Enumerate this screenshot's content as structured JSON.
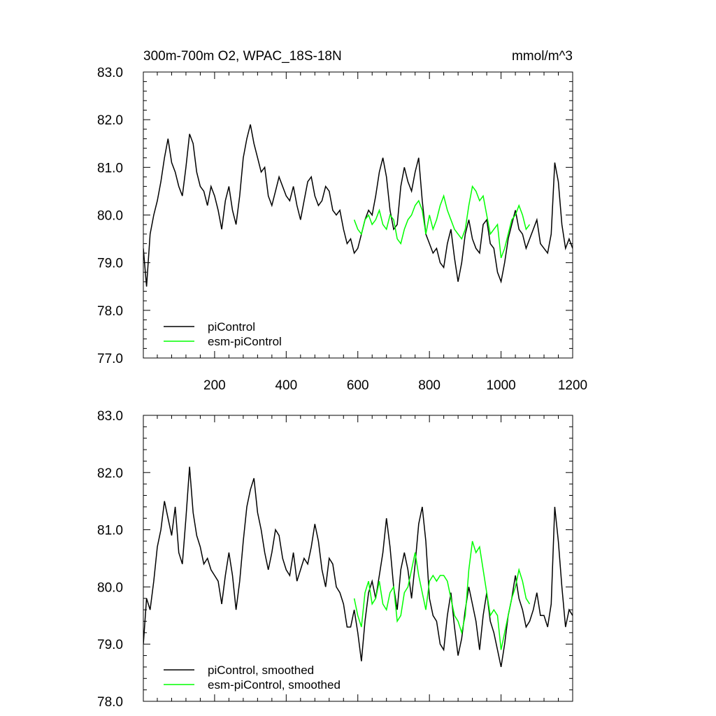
{
  "chart_data": [
    {
      "type": "line",
      "title": "300m-700m O2, WPAC_18S-18N",
      "units": "mmol/m^3",
      "xlim": [
        1,
        1200
      ],
      "ylim": [
        77.0,
        83.0
      ],
      "x_ticks": [
        200,
        400,
        600,
        800,
        1000,
        1200
      ],
      "y_ticks": [
        "77.0",
        "78.0",
        "79.0",
        "80.0",
        "81.0",
        "82.0",
        "83.0"
      ],
      "grid": false,
      "legend_position": "bottom-left",
      "series": [
        {
          "name": "piControl",
          "color": "#000000",
          "x": [
            1,
            10,
            20,
            30,
            40,
            50,
            60,
            70,
            80,
            90,
            100,
            110,
            120,
            130,
            140,
            150,
            160,
            170,
            180,
            190,
            200,
            210,
            220,
            230,
            240,
            250,
            260,
            270,
            280,
            290,
            300,
            310,
            320,
            330,
            340,
            350,
            360,
            370,
            380,
            390,
            400,
            410,
            420,
            430,
            440,
            450,
            460,
            470,
            480,
            490,
            500,
            510,
            520,
            530,
            540,
            550,
            560,
            570,
            580,
            590,
            600,
            610,
            620,
            630,
            640,
            650,
            660,
            670,
            680,
            690,
            700,
            710,
            720,
            730,
            740,
            750,
            760,
            770,
            780,
            790,
            800,
            810,
            820,
            830,
            840,
            850,
            860,
            870,
            880,
            890,
            900,
            910,
            920,
            930,
            940,
            950,
            960,
            970,
            980,
            990,
            1000,
            1010,
            1020,
            1030,
            1040,
            1050,
            1060,
            1070,
            1080,
            1090,
            1100,
            1110,
            1120,
            1130,
            1140,
            1150,
            1160,
            1170,
            1180,
            1190,
            1200
          ],
          "values": [
            79.3,
            78.5,
            79.6,
            80.0,
            80.3,
            80.7,
            81.2,
            81.6,
            81.1,
            80.9,
            80.6,
            80.4,
            81.0,
            81.7,
            81.5,
            80.9,
            80.6,
            80.5,
            80.2,
            80.6,
            80.4,
            80.1,
            79.7,
            80.3,
            80.6,
            80.1,
            79.8,
            80.4,
            81.2,
            81.6,
            81.9,
            81.5,
            81.2,
            80.9,
            81.0,
            80.4,
            80.2,
            80.5,
            80.8,
            80.6,
            80.4,
            80.3,
            80.6,
            80.2,
            79.9,
            80.3,
            80.7,
            80.8,
            80.4,
            80.2,
            80.3,
            80.6,
            80.5,
            80.1,
            80.0,
            80.1,
            79.7,
            79.4,
            79.5,
            79.2,
            79.3,
            79.6,
            79.9,
            80.1,
            80.0,
            80.4,
            80.9,
            81.2,
            80.8,
            80.1,
            79.7,
            79.8,
            80.6,
            81.0,
            80.7,
            80.5,
            80.9,
            81.2,
            80.3,
            79.6,
            79.4,
            79.2,
            79.3,
            79.0,
            78.9,
            79.4,
            79.7,
            79.1,
            78.6,
            79.0,
            79.6,
            79.9,
            79.5,
            79.3,
            79.2,
            79.8,
            79.9,
            79.4,
            79.3,
            78.8,
            78.6,
            79.0,
            79.5,
            79.8,
            80.1,
            79.7,
            79.6,
            79.3,
            79.5,
            79.7,
            79.9,
            79.4,
            79.3,
            79.2,
            79.6,
            81.1,
            80.7,
            79.8,
            79.3,
            79.5,
            79.3
          ]
        },
        {
          "name": "esm-piControl",
          "color": "#00ff00",
          "x": [
            590,
            600,
            610,
            620,
            630,
            640,
            650,
            660,
            670,
            680,
            690,
            700,
            710,
            720,
            730,
            740,
            750,
            760,
            770,
            780,
            790,
            800,
            810,
            820,
            830,
            840,
            850,
            860,
            870,
            880,
            890,
            900,
            910,
            920,
            930,
            940,
            950,
            960,
            970,
            980,
            990,
            1000,
            1010,
            1020,
            1030,
            1040,
            1050,
            1060,
            1070,
            1080
          ],
          "values": [
            79.9,
            79.7,
            79.6,
            79.9,
            80.0,
            79.8,
            79.9,
            80.1,
            79.8,
            79.7,
            80.0,
            79.9,
            79.5,
            79.4,
            79.7,
            79.9,
            80.0,
            80.2,
            80.3,
            80.1,
            79.6,
            80.0,
            79.7,
            79.9,
            80.2,
            80.4,
            80.1,
            79.9,
            79.7,
            79.6,
            79.5,
            79.7,
            80.2,
            80.6,
            80.5,
            80.3,
            80.4,
            80.0,
            79.6,
            79.7,
            79.8,
            79.1,
            79.3,
            79.6,
            79.9,
            80.0,
            80.2,
            80.0,
            79.7,
            79.8
          ]
        }
      ]
    },
    {
      "type": "line",
      "title": "",
      "xlim": [
        1,
        1200
      ],
      "ylim": [
        78.0,
        83.0
      ],
      "y_ticks": [
        "78.0",
        "79.0",
        "80.0",
        "81.0",
        "82.0",
        "83.0"
      ],
      "grid": false,
      "legend_position": "bottom-left",
      "series": [
        {
          "name": "piControl, smoothed",
          "color": "#000000",
          "x": [
            1,
            10,
            20,
            30,
            40,
            50,
            60,
            70,
            80,
            90,
            100,
            110,
            120,
            130,
            140,
            150,
            160,
            170,
            180,
            190,
            200,
            210,
            220,
            230,
            240,
            250,
            260,
            270,
            280,
            290,
            300,
            310,
            320,
            330,
            340,
            350,
            360,
            370,
            380,
            390,
            400,
            410,
            420,
            430,
            440,
            450,
            460,
            470,
            480,
            490,
            500,
            510,
            520,
            530,
            540,
            550,
            560,
            570,
            580,
            590,
            600,
            610,
            620,
            630,
            640,
            650,
            660,
            670,
            680,
            690,
            700,
            710,
            720,
            730,
            740,
            750,
            760,
            770,
            780,
            790,
            800,
            810,
            820,
            830,
            840,
            850,
            860,
            870,
            880,
            890,
            900,
            910,
            920,
            930,
            940,
            950,
            960,
            970,
            980,
            990,
            1000,
            1010,
            1020,
            1030,
            1040,
            1050,
            1060,
            1070,
            1080,
            1090,
            1100,
            1110,
            1120,
            1130,
            1140,
            1150,
            1160,
            1170,
            1180,
            1190,
            1200
          ],
          "values": [
            79.0,
            79.8,
            79.6,
            80.1,
            80.7,
            81.0,
            81.5,
            81.2,
            80.9,
            81.4,
            80.6,
            80.4,
            81.2,
            82.1,
            81.3,
            80.9,
            80.7,
            80.4,
            80.5,
            80.3,
            80.2,
            80.1,
            79.7,
            80.2,
            80.6,
            80.2,
            79.6,
            80.1,
            80.8,
            81.4,
            81.7,
            81.9,
            81.3,
            81.0,
            80.6,
            80.3,
            80.6,
            81.0,
            80.9,
            80.5,
            80.3,
            80.2,
            80.6,
            80.1,
            80.3,
            80.5,
            80.4,
            80.7,
            81.1,
            80.8,
            80.3,
            80.0,
            80.5,
            80.4,
            80.0,
            79.9,
            79.7,
            79.3,
            79.3,
            79.6,
            79.2,
            78.7,
            79.4,
            79.9,
            80.1,
            79.8,
            80.2,
            80.6,
            81.2,
            80.7,
            80.0,
            79.6,
            80.3,
            80.6,
            80.3,
            79.8,
            80.4,
            81.1,
            81.4,
            80.8,
            79.8,
            79.5,
            79.4,
            79.0,
            78.9,
            79.5,
            79.9,
            79.3,
            78.8,
            79.1,
            79.6,
            80.0,
            79.7,
            79.4,
            78.9,
            79.5,
            79.9,
            79.4,
            79.2,
            78.9,
            78.6,
            79.0,
            79.5,
            79.8,
            80.2,
            79.8,
            79.6,
            79.3,
            79.4,
            79.6,
            79.9,
            79.5,
            79.5,
            79.3,
            79.7,
            81.4,
            80.8,
            80.0,
            79.3,
            79.6,
            79.5
          ]
        },
        {
          "name": "esm-piControl, smoothed",
          "color": "#00ff00",
          "x": [
            590,
            600,
            610,
            620,
            630,
            640,
            650,
            660,
            670,
            680,
            690,
            700,
            710,
            720,
            730,
            740,
            750,
            760,
            770,
            780,
            790,
            800,
            810,
            820,
            830,
            840,
            850,
            860,
            870,
            880,
            890,
            900,
            910,
            920,
            930,
            940,
            950,
            960,
            970,
            980,
            990,
            1000,
            1010,
            1020,
            1030,
            1040,
            1050,
            1060,
            1070,
            1080
          ],
          "values": [
            79.8,
            79.5,
            79.3,
            79.9,
            80.1,
            79.7,
            79.8,
            80.1,
            79.7,
            79.6,
            79.9,
            80.0,
            79.4,
            79.5,
            79.9,
            80.0,
            80.3,
            80.6,
            80.2,
            79.9,
            79.6,
            80.1,
            80.2,
            80.1,
            80.2,
            80.2,
            80.1,
            79.8,
            79.5,
            79.4,
            79.2,
            79.5,
            80.3,
            80.8,
            80.6,
            80.7,
            80.3,
            79.9,
            79.5,
            79.6,
            79.5,
            78.9,
            79.2,
            79.5,
            79.8,
            80.0,
            80.3,
            80.1,
            79.8,
            79.7
          ]
        }
      ]
    }
  ]
}
